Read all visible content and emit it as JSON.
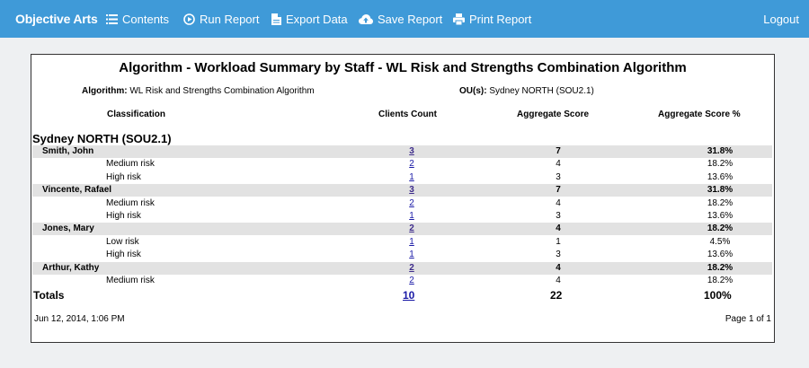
{
  "nav": {
    "brand": "Objective Arts",
    "contents": "Contents",
    "run_report": "Run Report",
    "export_data": "Export Data",
    "save_report": "Save Report",
    "print_report": "Print Report",
    "logout": "Logout"
  },
  "report": {
    "title": "Algorithm - Workload Summary by Staff - WL Risk and Strengths Combination Algorithm",
    "algorithm_label": "Algorithm:",
    "algorithm_value": "WL Risk and Strengths Combination Algorithm",
    "ou_label": "OU(s):",
    "ou_value": "Sydney NORTH (SOU2.1)",
    "columns": {
      "classification": "Classification",
      "clients_count": "Clients Count",
      "aggregate_score": "Aggregate Score",
      "aggregate_score_pct": "Aggregate Score %"
    },
    "group": "Sydney NORTH (SOU2.1)",
    "rows": [
      {
        "type": "staff",
        "name": "Smith, John",
        "count": "3",
        "score": "7",
        "pct": "31.8%"
      },
      {
        "type": "risk",
        "name": "Medium risk",
        "count": "2",
        "score": "4",
        "pct": "18.2%"
      },
      {
        "type": "risk",
        "name": "High risk",
        "count": "1",
        "score": "3",
        "pct": "13.6%"
      },
      {
        "type": "staff",
        "name": "Vincente, Rafael",
        "count": "3",
        "score": "7",
        "pct": "31.8%"
      },
      {
        "type": "risk",
        "name": "Medium risk",
        "count": "2",
        "score": "4",
        "pct": "18.2%"
      },
      {
        "type": "risk",
        "name": "High risk",
        "count": "1",
        "score": "3",
        "pct": "13.6%"
      },
      {
        "type": "staff",
        "name": "Jones, Mary",
        "count": "2",
        "score": "4",
        "pct": "18.2%"
      },
      {
        "type": "risk",
        "name": "Low risk",
        "count": "1",
        "score": "1",
        "pct": "4.5%"
      },
      {
        "type": "risk",
        "name": "High risk",
        "count": "1",
        "score": "3",
        "pct": "13.6%"
      },
      {
        "type": "staff",
        "name": "Arthur, Kathy",
        "count": "2",
        "score": "4",
        "pct": "18.2%"
      },
      {
        "type": "risk",
        "name": "Medium risk",
        "count": "2",
        "score": "4",
        "pct": "18.2%"
      }
    ],
    "totals": {
      "label": "Totals",
      "count": "10",
      "score": "22",
      "pct": "100%"
    },
    "date": "Jun 12, 2014, 1:06 PM",
    "page": "Page 1 of 1"
  }
}
